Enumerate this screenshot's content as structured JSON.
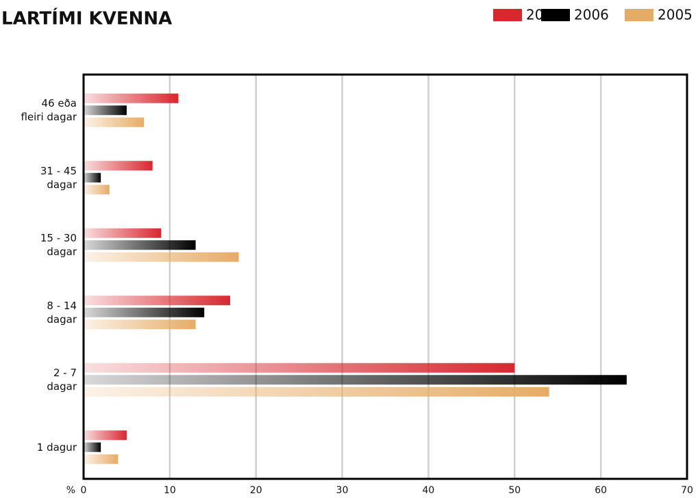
{
  "chart_data": {
    "type": "bar",
    "orientation": "horizontal",
    "title": "LARTÍMI KVENNA",
    "categories": [
      "46 eða\nfleiri dagar",
      "31 - 45\ndagar",
      "15 - 30\ndagar",
      "8 - 14\ndagar",
      "2 - 7\ndagar",
      "1 dagur"
    ],
    "series": [
      {
        "name": "2007",
        "color": "#d7282f",
        "values": [
          11,
          8,
          9,
          17,
          50,
          5
        ]
      },
      {
        "name": "2006",
        "color": "#000000",
        "values": [
          5,
          2,
          13,
          14,
          63,
          2
        ]
      },
      {
        "name": "2005",
        "color": "#e6ac66",
        "values": [
          7,
          3,
          18,
          13,
          54,
          4
        ]
      }
    ],
    "xlabel": "%",
    "xlim": [
      0,
      70
    ],
    "xticks": [
      0,
      10,
      20,
      30,
      40,
      50,
      60,
      70
    ],
    "grid": true,
    "legend": "top-right"
  }
}
